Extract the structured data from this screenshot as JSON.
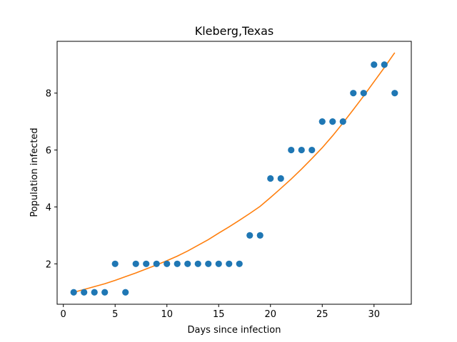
{
  "chart_data": {
    "type": "scatter",
    "title": "Kleberg,Texas",
    "xlabel": "Days since infection",
    "ylabel": "Population infected",
    "xlim": [
      -0.6,
      33.6
    ],
    "ylim": [
      0.58,
      9.82
    ],
    "xticks": [
      0,
      5,
      10,
      15,
      20,
      25,
      30
    ],
    "yticks": [
      2,
      4,
      6,
      8
    ],
    "grid": false,
    "legend": "none",
    "series": [
      {
        "kind": "scatter",
        "color": "#1f77b4",
        "x": [
          1,
          2,
          3,
          4,
          5,
          6,
          7,
          8,
          9,
          10,
          11,
          12,
          13,
          14,
          15,
          16,
          17,
          18,
          19,
          20,
          21,
          22,
          23,
          24,
          25,
          26,
          27,
          28,
          29,
          30,
          31,
          32
        ],
        "y": [
          1,
          1,
          1,
          1,
          2,
          1,
          2,
          2,
          2,
          2,
          2,
          2,
          2,
          2,
          2,
          2,
          2,
          3,
          3,
          5,
          5,
          6,
          6,
          6,
          7,
          7,
          7,
          8,
          8,
          9,
          9,
          8
        ]
      },
      {
        "kind": "line",
        "color": "#ff7f0e",
        "x": [
          1,
          2,
          3,
          4,
          5,
          6,
          7,
          8,
          9,
          10,
          11,
          12,
          13,
          14,
          15,
          16,
          17,
          18,
          19,
          20,
          21,
          22,
          23,
          24,
          25,
          26,
          27,
          28,
          29,
          30,
          31,
          32
        ],
        "y": [
          1.0,
          1.1,
          1.2,
          1.3,
          1.42,
          1.55,
          1.68,
          1.82,
          1.96,
          2.11,
          2.27,
          2.45,
          2.65,
          2.85,
          3.08,
          3.3,
          3.53,
          3.77,
          4.02,
          4.33,
          4.65,
          4.98,
          5.33,
          5.7,
          6.08,
          6.5,
          6.95,
          7.42,
          7.9,
          8.4,
          8.9,
          9.42
        ]
      }
    ]
  }
}
